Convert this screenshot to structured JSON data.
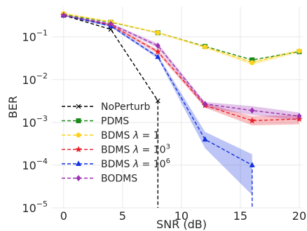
{
  "chart_data": {
    "type": "line",
    "xlabel": "SNR (dB)",
    "ylabel": "BER",
    "xlim": [
      -1,
      20.3
    ],
    "ylim": [
      1e-05,
      0.5
    ],
    "yscale": "log",
    "grid": true,
    "legend_position": "lower-left",
    "x_ticks": [
      {
        "value": 0,
        "label": "0"
      },
      {
        "value": 5,
        "label": "5"
      },
      {
        "value": 10,
        "label": "10"
      },
      {
        "value": 15,
        "label": "15"
      },
      {
        "value": 20,
        "label": "20"
      }
    ],
    "y_ticks": [
      {
        "value": 0.1,
        "base": "10",
        "exp": "−1"
      },
      {
        "value": 0.01,
        "base": "10",
        "exp": "−2"
      },
      {
        "value": 0.001,
        "base": "10",
        "exp": "−3"
      },
      {
        "value": 0.0001,
        "base": "10",
        "exp": "−4"
      },
      {
        "value": 1e-05,
        "base": "10",
        "exp": "−5"
      }
    ],
    "series": [
      {
        "key": "noperturb",
        "name": "NoPerturb",
        "color": "#000000",
        "marker": "x",
        "x": [
          0,
          4,
          8,
          8
        ],
        "y": [
          0.32,
          0.15,
          0.0032,
          1e-05
        ]
      },
      {
        "key": "pdms",
        "name": "PDMS",
        "color": "#1a8a1a",
        "marker": "square",
        "x": [
          0,
          4,
          8,
          12,
          16,
          20
        ],
        "y": [
          0.33,
          0.22,
          0.125,
          0.06,
          0.029,
          0.045
        ]
      },
      {
        "key": "bdms1",
        "name": "BDMS λ = 1",
        "color": "#ffd21f",
        "marker": "circle",
        "x": [
          0,
          4,
          8,
          12,
          16,
          20
        ],
        "y": [
          0.35,
          0.225,
          0.125,
          0.058,
          0.025,
          0.047
        ],
        "band_lo": [
          0.33,
          0.215,
          0.118,
          0.054,
          0.022,
          0.043
        ],
        "band_hi": [
          0.37,
          0.235,
          0.132,
          0.062,
          0.028,
          0.051
        ]
      },
      {
        "key": "bdms3",
        "name": "BDMS λ = 10³",
        "color": "#e8202a",
        "marker": "star",
        "x": [
          0,
          4,
          8,
          12,
          16,
          20
        ],
        "y": [
          0.32,
          0.19,
          0.045,
          0.0025,
          0.0011,
          0.0012
        ],
        "band_lo": [
          0.31,
          0.18,
          0.04,
          0.0022,
          0.00085,
          0.0009
        ],
        "band_hi": [
          0.33,
          0.2,
          0.05,
          0.0028,
          0.0014,
          0.0015
        ]
      },
      {
        "key": "bdms6",
        "name": "BDMS λ = 10⁶",
        "color": "#1030e0",
        "marker": "triangle",
        "x": [
          0,
          4,
          8,
          12,
          16,
          16
        ],
        "y": [
          0.32,
          0.18,
          0.034,
          0.0004,
          0.0001,
          1e-05
        ],
        "band_lo": [
          0.31,
          0.17,
          0.031,
          0.00025,
          2e-05,
          1e-05
        ],
        "band_hi": [
          0.33,
          0.19,
          0.037,
          0.0006,
          0.00018,
          1e-05
        ]
      },
      {
        "key": "bodms",
        "name": "BODMS",
        "color": "#9b30b0",
        "marker": "diamond",
        "x": [
          0,
          4,
          8,
          12,
          16,
          20
        ],
        "y": [
          0.32,
          0.2,
          0.062,
          0.0027,
          0.0019,
          0.0014
        ],
        "band_lo": [
          0.31,
          0.19,
          0.055,
          0.0022,
          0.0015,
          0.0011
        ],
        "band_hi": [
          0.33,
          0.21,
          0.07,
          0.003,
          0.0024,
          0.0017
        ]
      }
    ],
    "legend": [
      {
        "series": "noperturb",
        "label": "NoPerturb"
      },
      {
        "series": "pdms",
        "label": "PDMS"
      },
      {
        "series": "bdms1",
        "prefix": "BDMS ",
        "lambda": "λ",
        "mid": " = ",
        "base": "1",
        "sup": ""
      },
      {
        "series": "bdms3",
        "prefix": "BDMS ",
        "lambda": "λ",
        "mid": " = ",
        "base": "10",
        "sup": "3"
      },
      {
        "series": "bdms6",
        "prefix": "BDMS ",
        "lambda": "λ",
        "mid": " = ",
        "base": "10",
        "sup": "6"
      },
      {
        "series": "bodms",
        "label": "BODMS"
      }
    ]
  }
}
